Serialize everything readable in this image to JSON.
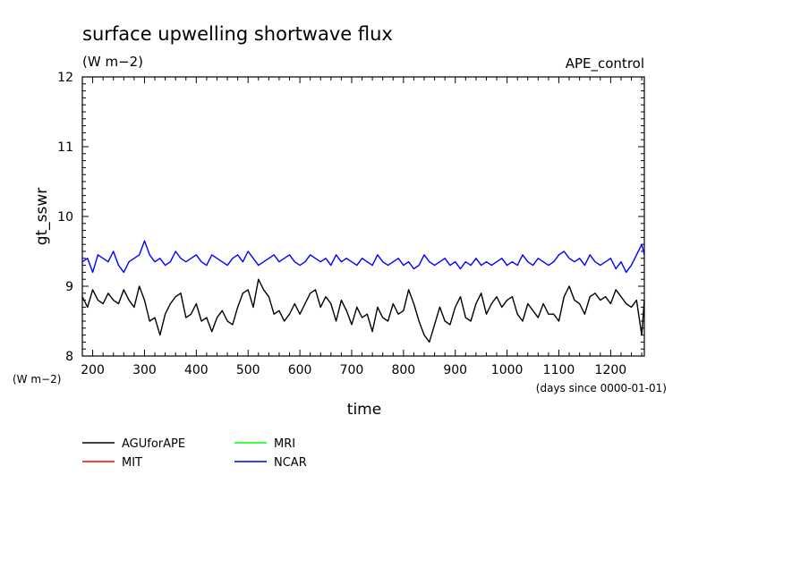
{
  "chart_data": {
    "type": "line",
    "title": "surface upwelling shortwave flux",
    "subtitle": "(W m−2)",
    "experiment": "APE_control",
    "xlabel": "time",
    "x_units": "(days since 0000-01-01)",
    "ylabel": "gt_sswr",
    "y_units": "(W m−2)",
    "xlim": [
      180,
      1265
    ],
    "ylim": [
      8,
      12
    ],
    "x_ticks": [
      "200",
      "300",
      "400",
      "500",
      "600",
      "700",
      "800",
      "900",
      "1000",
      "1100",
      "1200"
    ],
    "y_ticks": [
      "8",
      "9",
      "10",
      "11",
      "12"
    ],
    "grid": false,
    "legend_position": "below",
    "series": [
      {
        "name": "AGUforAPE",
        "color": "#000000",
        "x": [
          180,
          190,
          200,
          210,
          220,
          230,
          240,
          250,
          260,
          270,
          280,
          290,
          300,
          310,
          320,
          330,
          340,
          350,
          360,
          370,
          380,
          390,
          400,
          410,
          420,
          430,
          440,
          450,
          460,
          470,
          480,
          490,
          500,
          510,
          520,
          530,
          540,
          550,
          560,
          570,
          580,
          590,
          600,
          610,
          620,
          630,
          640,
          650,
          660,
          670,
          680,
          690,
          700,
          710,
          720,
          730,
          740,
          750,
          760,
          770,
          780,
          790,
          800,
          810,
          820,
          830,
          840,
          850,
          860,
          870,
          880,
          890,
          900,
          910,
          920,
          930,
          940,
          950,
          960,
          970,
          980,
          990,
          1000,
          1010,
          1020,
          1030,
          1040,
          1050,
          1060,
          1070,
          1080,
          1090,
          1100,
          1110,
          1120,
          1130,
          1140,
          1150,
          1160,
          1170,
          1180,
          1190,
          1200,
          1210,
          1220,
          1230,
          1240,
          1250,
          1260,
          1265
        ],
        "y": [
          8.85,
          8.7,
          8.95,
          8.8,
          8.75,
          8.9,
          8.8,
          8.75,
          8.95,
          8.8,
          8.7,
          9.0,
          8.8,
          8.5,
          8.55,
          8.3,
          8.6,
          8.75,
          8.85,
          8.9,
          8.55,
          8.6,
          8.75,
          8.5,
          8.55,
          8.35,
          8.55,
          8.65,
          8.5,
          8.45,
          8.7,
          8.9,
          8.95,
          8.7,
          9.1,
          8.95,
          8.85,
          8.6,
          8.65,
          8.5,
          8.6,
          8.75,
          8.6,
          8.75,
          8.9,
          8.95,
          8.7,
          8.85,
          8.75,
          8.5,
          8.8,
          8.65,
          8.45,
          8.7,
          8.55,
          8.6,
          8.35,
          8.7,
          8.55,
          8.5,
          8.75,
          8.6,
          8.65,
          8.95,
          8.75,
          8.5,
          8.3,
          8.2,
          8.45,
          8.7,
          8.5,
          8.45,
          8.7,
          8.85,
          8.55,
          8.5,
          8.75,
          8.9,
          8.6,
          8.75,
          8.85,
          8.7,
          8.8,
          8.85,
          8.6,
          8.5,
          8.75,
          8.65,
          8.55,
          8.75,
          8.6,
          8.6,
          8.5,
          8.85,
          9.0,
          8.8,
          8.75,
          8.6,
          8.85,
          8.9,
          8.8,
          8.85,
          8.75,
          8.95,
          8.85,
          8.75,
          8.7,
          8.8,
          8.3,
          8.8
        ]
      },
      {
        "name": "MIT",
        "color": "#ff0000",
        "x": [],
        "y": []
      },
      {
        "name": "MRI",
        "color": "#00ff00",
        "x": [],
        "y": []
      },
      {
        "name": "NCAR",
        "color": "#0000ff",
        "x": [
          180,
          190,
          200,
          210,
          220,
          230,
          240,
          250,
          260,
          270,
          280,
          290,
          300,
          310,
          320,
          330,
          340,
          350,
          360,
          370,
          380,
          390,
          400,
          410,
          420,
          430,
          440,
          450,
          460,
          470,
          480,
          490,
          500,
          510,
          520,
          530,
          540,
          550,
          560,
          570,
          580,
          590,
          600,
          610,
          620,
          630,
          640,
          650,
          660,
          670,
          680,
          690,
          700,
          710,
          720,
          730,
          740,
          750,
          760,
          770,
          780,
          790,
          800,
          810,
          820,
          830,
          840,
          850,
          860,
          870,
          880,
          890,
          900,
          910,
          920,
          930,
          940,
          950,
          960,
          970,
          980,
          990,
          1000,
          1010,
          1020,
          1030,
          1040,
          1050,
          1060,
          1070,
          1080,
          1090,
          1100,
          1110,
          1120,
          1130,
          1140,
          1150,
          1160,
          1170,
          1180,
          1190,
          1200,
          1210,
          1220,
          1230,
          1240,
          1250,
          1260,
          1265
        ],
        "y": [
          9.35,
          9.4,
          9.2,
          9.45,
          9.4,
          9.35,
          9.5,
          9.3,
          9.2,
          9.35,
          9.4,
          9.45,
          9.65,
          9.45,
          9.35,
          9.4,
          9.3,
          9.35,
          9.5,
          9.4,
          9.35,
          9.4,
          9.45,
          9.35,
          9.3,
          9.45,
          9.4,
          9.35,
          9.3,
          9.4,
          9.45,
          9.35,
          9.5,
          9.4,
          9.3,
          9.35,
          9.4,
          9.45,
          9.35,
          9.4,
          9.45,
          9.35,
          9.3,
          9.35,
          9.45,
          9.4,
          9.35,
          9.4,
          9.3,
          9.45,
          9.35,
          9.4,
          9.35,
          9.3,
          9.4,
          9.35,
          9.3,
          9.45,
          9.35,
          9.3,
          9.35,
          9.4,
          9.3,
          9.35,
          9.25,
          9.3,
          9.45,
          9.35,
          9.3,
          9.35,
          9.4,
          9.3,
          9.35,
          9.25,
          9.35,
          9.3,
          9.4,
          9.3,
          9.35,
          9.3,
          9.35,
          9.4,
          9.3,
          9.35,
          9.3,
          9.45,
          9.35,
          9.3,
          9.4,
          9.35,
          9.3,
          9.35,
          9.45,
          9.5,
          9.4,
          9.35,
          9.4,
          9.3,
          9.45,
          9.35,
          9.3,
          9.35,
          9.4,
          9.25,
          9.35,
          9.2,
          9.3,
          9.45,
          9.6,
          9.45
        ]
      }
    ]
  }
}
